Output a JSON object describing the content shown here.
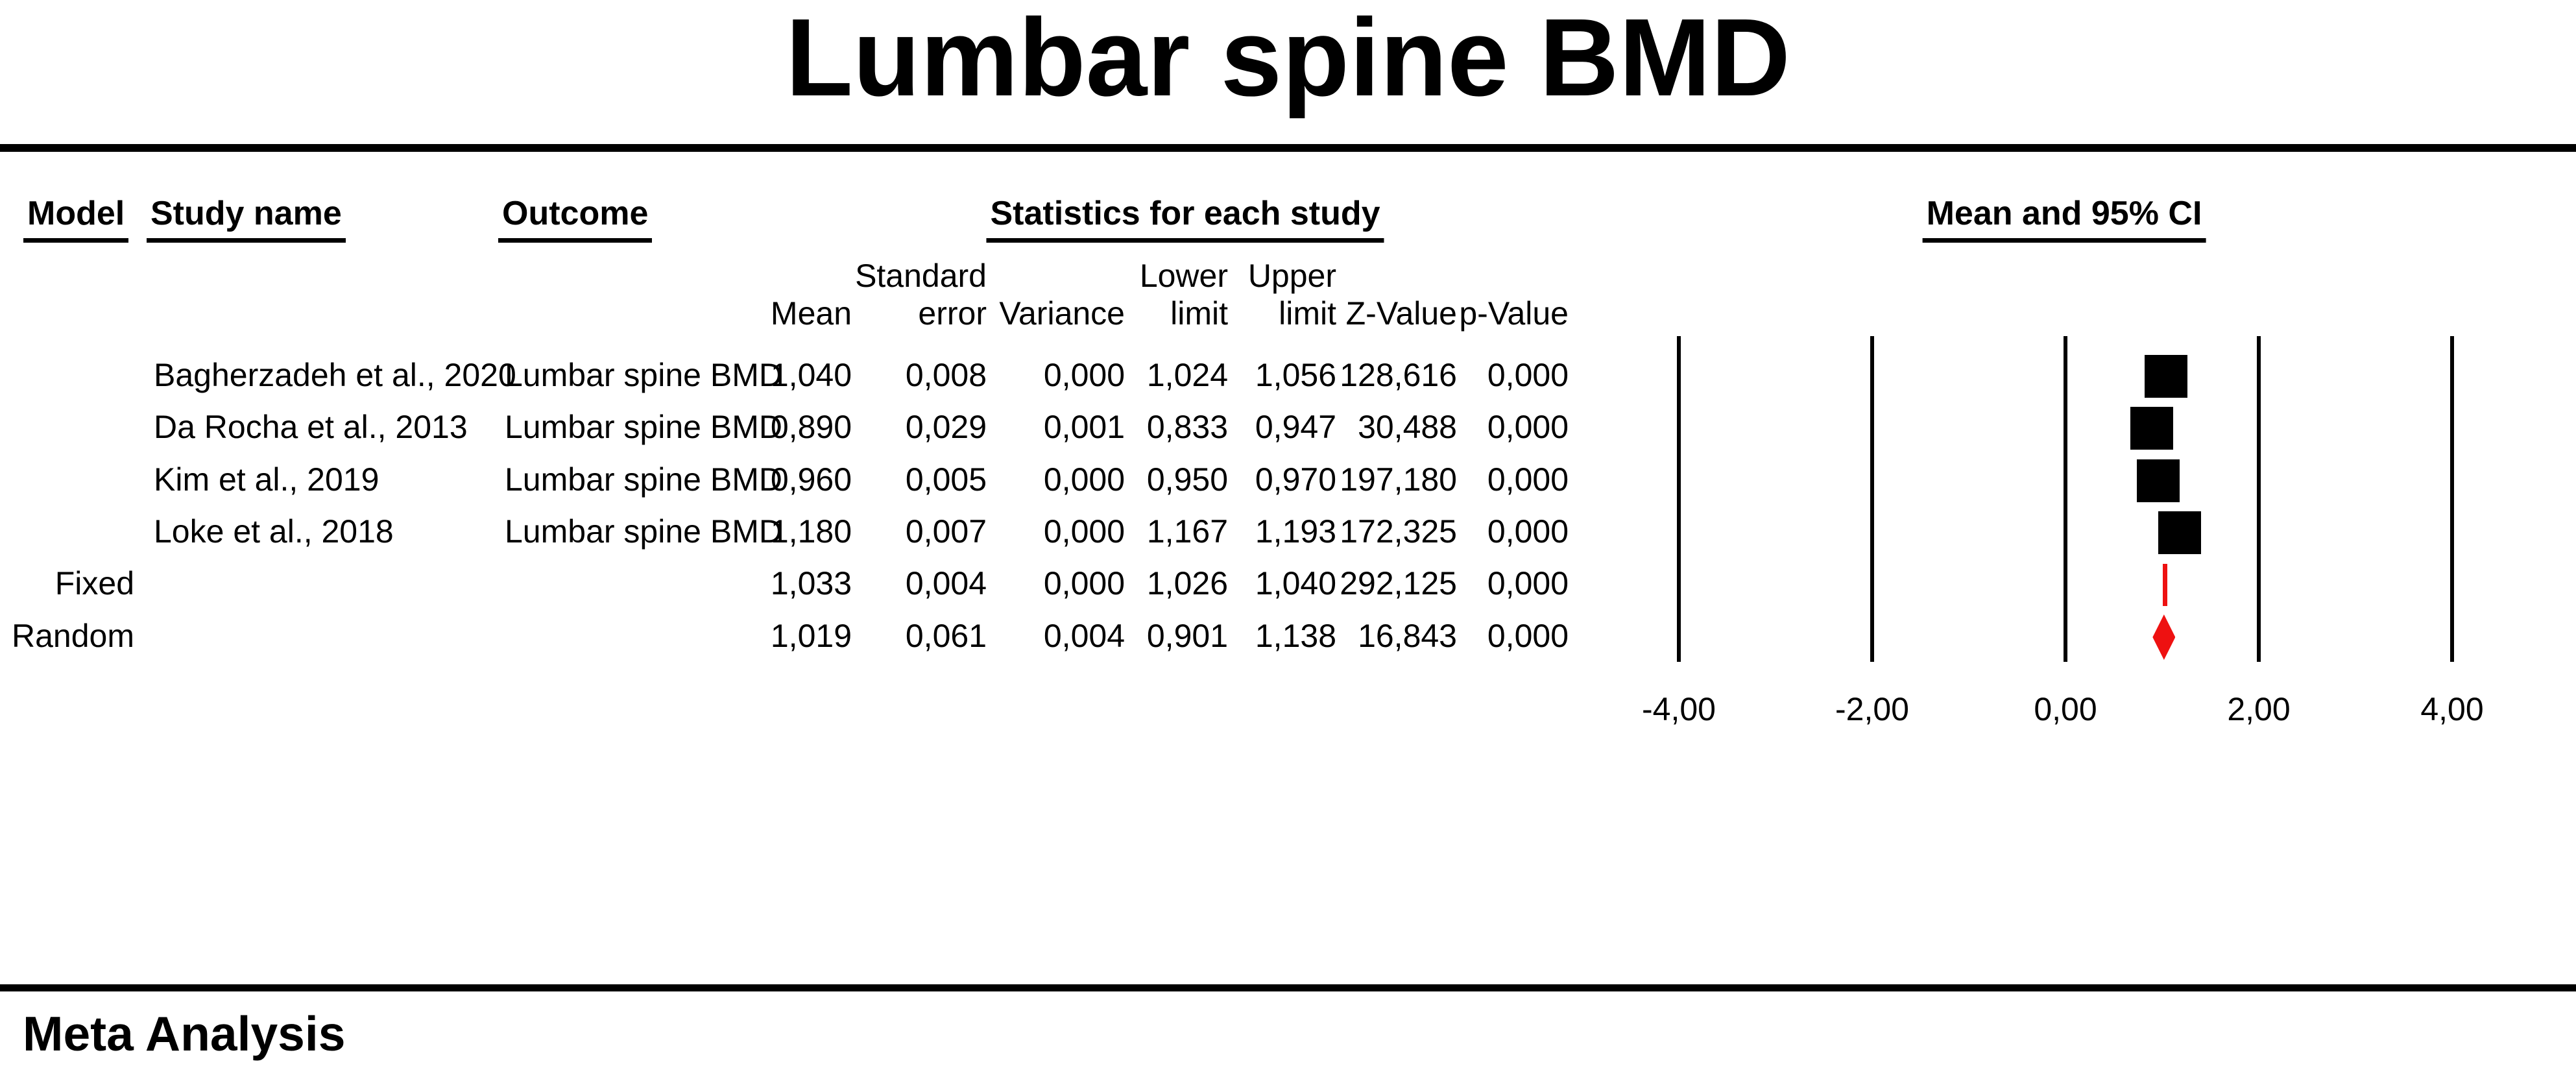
{
  "title": "Lumbar spine BMD",
  "footer": {
    "label": "Meta Analysis"
  },
  "colors": {
    "marker_black": "#000000",
    "summary_red": "#ee1111",
    "text": "#000000",
    "background": "#ffffff"
  },
  "table": {
    "headers": {
      "model": "Model",
      "study": "Study name",
      "outcome": "Outcome",
      "stats": "Statistics for each study",
      "ci": "Mean and 95% CI"
    },
    "sub_headers": {
      "standard": "Standard",
      "lower": "Lower",
      "upper": "Upper",
      "mean": "Mean",
      "error": "error",
      "variance": "Variance",
      "lower_limit": "limit",
      "upper_limit": "limit",
      "z": "Z-Value",
      "p": "p-Value"
    },
    "rows": [
      {
        "model": "",
        "study": "Bagherzadeh et al., 2020",
        "outcome": "Lumbar spine BMD",
        "mean": "1,040",
        "se": "0,008",
        "variance": "0,000",
        "lower": "1,024",
        "upper": "1,056",
        "z": "128,616",
        "p": "0,000"
      },
      {
        "model": "",
        "study": "Da Rocha et al., 2013",
        "outcome": "Lumbar spine BMD",
        "mean": "0,890",
        "se": "0,029",
        "variance": "0,001",
        "lower": "0,833",
        "upper": "0,947",
        "z": "30,488",
        "p": "0,000"
      },
      {
        "model": "",
        "study": "Kim et al., 2019",
        "outcome": "Lumbar spine BMD",
        "mean": "0,960",
        "se": "0,005",
        "variance": "0,000",
        "lower": "0,950",
        "upper": "0,970",
        "z": "197,180",
        "p": "0,000"
      },
      {
        "model": "",
        "study": "Loke et al., 2018",
        "outcome": "Lumbar spine BMD",
        "mean": "1,180",
        "se": "0,007",
        "variance": "0,000",
        "lower": "1,167",
        "upper": "1,193",
        "z": "172,325",
        "p": "0,000"
      },
      {
        "model": "Fixed",
        "study": "",
        "outcome": "",
        "mean": "1,033",
        "se": "0,004",
        "variance": "0,000",
        "lower": "1,026",
        "upper": "1,040",
        "z": "292,125",
        "p": "0,000"
      },
      {
        "model": "Random",
        "study": "",
        "outcome": "",
        "mean": "1,019",
        "se": "0,061",
        "variance": "0,004",
        "lower": "0,901",
        "upper": "1,138",
        "z": "16,843",
        "p": "0,000"
      }
    ]
  },
  "chart_data": {
    "type": "scatter",
    "variant": "forest-plot",
    "title": "Lumbar spine BMD",
    "xlabel": "",
    "ylabel": "",
    "column_header": "Mean and 95% CI",
    "x_axis": {
      "ticks": [
        -4,
        -2,
        0,
        2,
        4
      ],
      "tick_labels": [
        "-4,00",
        "-2,00",
        "0,00",
        "2,00",
        "4,00"
      ],
      "xlim": [
        -4.7,
        4.7
      ]
    },
    "grid": "vertical-reference-lines",
    "legend_position": "none",
    "studies": [
      {
        "label": "Bagherzadeh et al., 2020",
        "mean": 1.04,
        "se": 0.008,
        "variance": 0.0,
        "lower": 1.024,
        "upper": 1.056,
        "z": 128.616,
        "p": 0.0,
        "marker": "square"
      },
      {
        "label": "Da Rocha et al., 2013",
        "mean": 0.89,
        "se": 0.029,
        "variance": 0.001,
        "lower": 0.833,
        "upper": 0.947,
        "z": 30.488,
        "p": 0.0,
        "marker": "square"
      },
      {
        "label": "Kim et al., 2019",
        "mean": 0.96,
        "se": 0.005,
        "variance": 0.0,
        "lower": 0.95,
        "upper": 0.97,
        "z": 197.18,
        "p": 0.0,
        "marker": "square"
      },
      {
        "label": "Loke et al., 2018",
        "mean": 1.18,
        "se": 0.007,
        "variance": 0.0,
        "lower": 1.167,
        "upper": 1.193,
        "z": 172.325,
        "p": 0.0,
        "marker": "square"
      },
      {
        "label": "Fixed",
        "mean": 1.033,
        "se": 0.004,
        "variance": 0.0,
        "lower": 1.026,
        "upper": 1.04,
        "z": 292.125,
        "p": 0.0,
        "marker": "red-line"
      },
      {
        "label": "Random",
        "mean": 1.019,
        "se": 0.061,
        "variance": 0.004,
        "lower": 0.901,
        "upper": 1.138,
        "z": 16.843,
        "p": 0.0,
        "marker": "red-diamond"
      }
    ]
  }
}
